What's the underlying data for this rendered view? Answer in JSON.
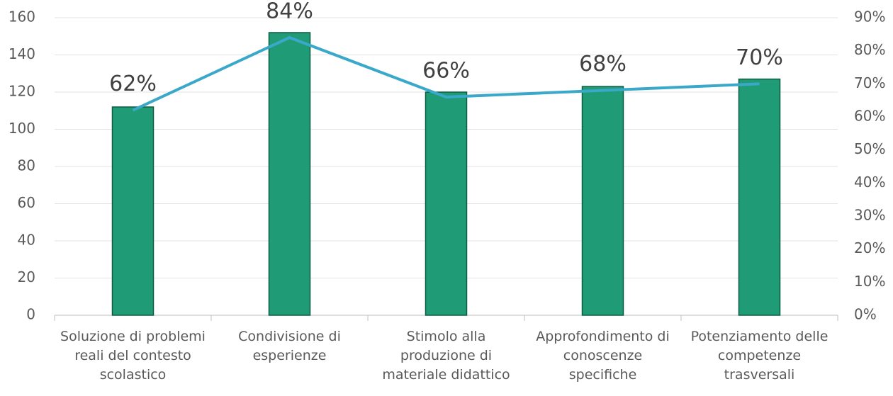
{
  "chart_data": {
    "type": "bar",
    "categories": [
      "Soluzione di problemi reali del contesto scolastico",
      "Condivisione di esperienze",
      "Stimolo alla produzione di materiale didattico",
      "Approfondimento di conoscenze specifiche",
      "Potenziamento delle competenze trasversali"
    ],
    "series": [
      {
        "type": "bar",
        "color": "#1f9c76",
        "values": [
          112,
          152,
          120,
          123,
          127
        ]
      },
      {
        "type": "line",
        "axis": "y2",
        "color": "#3aa8c9",
        "values": [
          62,
          84,
          66,
          68,
          70
        ],
        "value_labels": [
          "62%",
          "84%",
          "66%",
          "68%",
          "70%"
        ]
      }
    ],
    "ylim": [
      0,
      160
    ],
    "yticks": [
      0,
      20,
      40,
      60,
      80,
      100,
      120,
      140,
      160
    ],
    "y2lim": [
      0,
      90
    ],
    "y2ticks": [
      {
        "value": 0,
        "label": "0%"
      },
      {
        "value": 10,
        "label": "10%"
      },
      {
        "value": 20,
        "label": "20%"
      },
      {
        "value": 30,
        "label": "30%"
      },
      {
        "value": 40,
        "label": "40%"
      },
      {
        "value": 50,
        "label": "50%"
      },
      {
        "value": 60,
        "label": "60%"
      },
      {
        "value": 70,
        "label": "70%"
      },
      {
        "value": 80,
        "label": "80%"
      },
      {
        "value": 90,
        "label": "90%"
      }
    ],
    "grid": true
  }
}
